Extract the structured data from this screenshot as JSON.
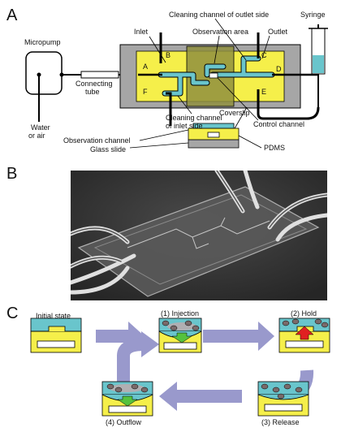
{
  "panels": {
    "a": "A",
    "b": "B",
    "c": "C"
  },
  "panel_a": {
    "micropump": "Micropump",
    "connecting_tube_1": "Connecting",
    "connecting_tube_2": "tube",
    "water_1": "Water",
    "water_2": "or air",
    "inlet": "Inlet",
    "observation_area": "Observation area",
    "cleaning_outlet": "Cleaning channel of outlet side",
    "outlet": "Outlet",
    "syringe": "Syringe",
    "ports": {
      "a": "A",
      "b": "B",
      "c": "C",
      "d": "D",
      "e": "E",
      "f": "F"
    },
    "cleaning_inlet_1": "Cleaning channel",
    "cleaning_inlet_2": "of inlet side",
    "coverslip": "Coverslip",
    "control_channel": "Control channel",
    "observation_channel": "Observation channel",
    "glass_slide": "Glass slide",
    "pdms": "PDMS"
  },
  "panel_c": {
    "initial": "Initial state",
    "injection": "(1) Injection",
    "hold": "(2) Hold",
    "release": "(3) Release",
    "outflow": "(4) Outflow"
  },
  "colors": {
    "chip_gray": "#a6a6a6",
    "pdms_yellow": "#f5ef4a",
    "observation_olive": "#8f8f3e",
    "channel_cyan": "#69c5cc",
    "arrow_lavender": "#9999cc",
    "green_arrow": "#55c23d",
    "red_arrow": "#e02121"
  }
}
